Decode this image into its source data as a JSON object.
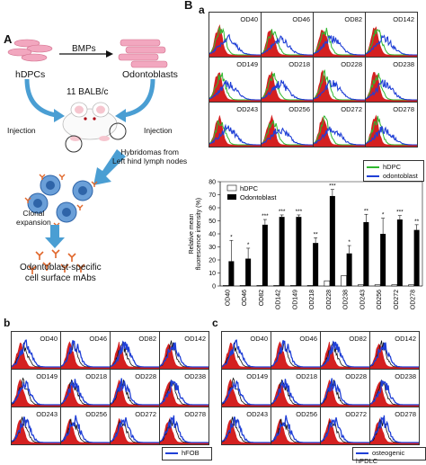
{
  "panel_A": {
    "letter": "A",
    "bmps": "BMPs",
    "hdpcs": "hDPCs",
    "odontoblasts": "Odontoblasts",
    "mouse": "11 BALB/c",
    "injection_left": "Injection",
    "injection_right": "Injection",
    "hybridomas": "Hybridomas from\nLeft hind lymph nodes",
    "clonal": "Clonal\nexpansion",
    "result": "Odontoblast-specific\ncell surface mAbs"
  },
  "panel_B": {
    "letter": "B",
    "sub_a": "a",
    "histograms": [
      "OD40",
      "OD46",
      "OD82",
      "OD142",
      "OD149",
      "OD218",
      "OD228",
      "OD238",
      "OD243",
      "OD256",
      "OD272",
      "OD278"
    ],
    "legend": [
      "hDPC",
      "odontoblast"
    ],
    "colors": {
      "hdpc": "#2fb82f",
      "odontoblast": "#1f3fd6",
      "isotype": "#d42020"
    }
  },
  "panel_b": {
    "letter": "b",
    "histograms": [
      "OD40",
      "OD46",
      "OD82",
      "OD142",
      "OD149",
      "OD218",
      "OD228",
      "OD238",
      "OD243",
      "OD256",
      "OD272",
      "OD278"
    ],
    "legend": "hFOB"
  },
  "panel_c": {
    "letter": "c",
    "histograms": [
      "OD40",
      "OD46",
      "OD82",
      "OD142",
      "OD149",
      "OD218",
      "OD228",
      "OD238",
      "OD243",
      "OD256",
      "OD272",
      "OD278"
    ],
    "legend": "osteogenic hPDLC"
  },
  "chart_data": {
    "type": "bar",
    "ylabel": "Relative mean\nfluorescence intensity (%)",
    "ylim": [
      0,
      80
    ],
    "yticks": [
      0,
      10,
      20,
      30,
      40,
      50,
      60,
      70,
      80
    ],
    "categories": [
      "OD40",
      "OD46",
      "OD82",
      "OD142",
      "OD149",
      "OD218",
      "OD228",
      "OD238",
      "OD243",
      "OD256",
      "OD272",
      "OD278"
    ],
    "series": [
      {
        "name": "hDPC",
        "values": [
          0.5,
          0.5,
          0.5,
          0.5,
          0.5,
          0.5,
          4,
          8,
          1,
          1,
          1,
          1
        ]
      },
      {
        "name": "Odontoblast",
        "values": [
          19,
          21,
          47,
          53,
          53,
          33,
          69,
          25,
          49,
          40,
          51,
          43
        ]
      }
    ],
    "errors": [
      16,
      8,
      4,
      1.5,
      1.5,
      4,
      5,
      6,
      6,
      12,
      3,
      4
    ],
    "significance": [
      "*",
      "*",
      "***",
      "***",
      "***",
      "**",
      "***",
      "*",
      "**",
      "*",
      "***",
      "**"
    ],
    "legend_position": "top-right"
  }
}
